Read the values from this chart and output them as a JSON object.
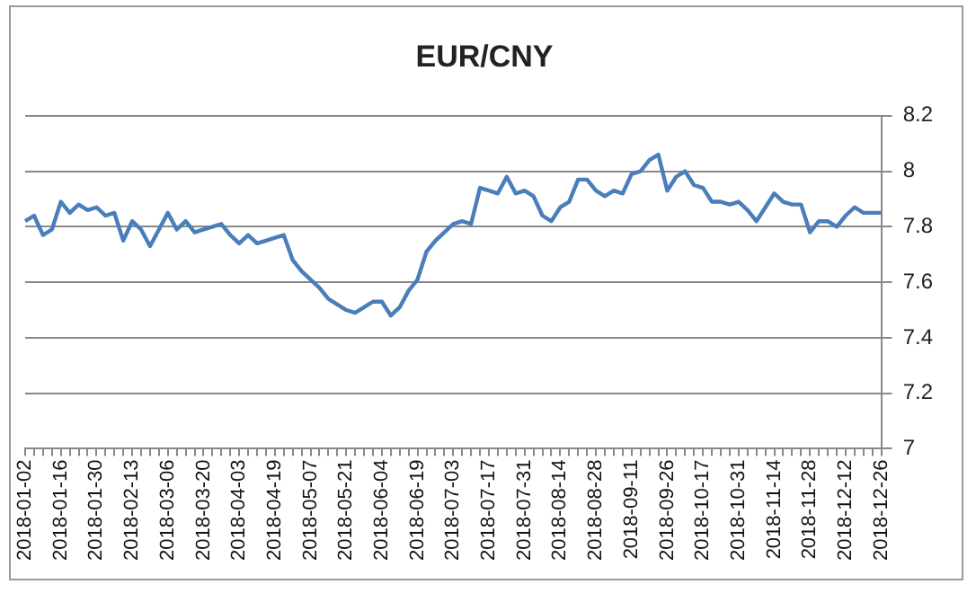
{
  "chart_data": {
    "type": "line",
    "title": "EUR/CNY",
    "categories": [
      "2018-01-02",
      null,
      null,
      null,
      "2018-01-16",
      null,
      null,
      null,
      "2018-01-30",
      null,
      null,
      null,
      "2018-02-13",
      null,
      null,
      null,
      "2018-03-06",
      null,
      null,
      null,
      "2018-03-20",
      null,
      null,
      null,
      "2018-04-03",
      null,
      null,
      null,
      "2018-04-19",
      null,
      null,
      null,
      "2018-05-07",
      null,
      null,
      null,
      "2018-05-21",
      null,
      null,
      null,
      "2018-06-04",
      null,
      null,
      null,
      "2018-06-19",
      null,
      null,
      null,
      "2018-07-03",
      null,
      null,
      null,
      "2018-07-17",
      null,
      null,
      null,
      "2018-07-31",
      null,
      null,
      null,
      "2018-08-14",
      null,
      null,
      null,
      "2018-08-28",
      null,
      null,
      null,
      "2018-09-11",
      null,
      null,
      null,
      "2018-09-26",
      null,
      null,
      null,
      "2018-10-17",
      null,
      null,
      null,
      "2018-10-31",
      null,
      null,
      null,
      "2018-11-14",
      null,
      null,
      null,
      "2018-11-28",
      null,
      null,
      null,
      "2018-12-12",
      null,
      null,
      null,
      "2018-12-26"
    ],
    "series": [
      {
        "color": "#4a7ebb",
        "values": [
          7.82,
          7.84,
          7.77,
          7.79,
          7.89,
          7.85,
          7.88,
          7.86,
          7.87,
          7.84,
          7.85,
          7.75,
          7.82,
          7.79,
          7.73,
          7.79,
          7.85,
          7.79,
          7.82,
          7.78,
          7.79,
          7.8,
          7.81,
          7.77,
          7.74,
          7.77,
          7.74,
          7.75,
          7.76,
          7.77,
          7.68,
          7.64,
          7.61,
          7.58,
          7.54,
          7.52,
          7.5,
          7.49,
          7.51,
          7.53,
          7.53,
          7.48,
          7.51,
          7.57,
          7.61,
          7.71,
          7.75,
          7.78,
          7.81,
          7.82,
          7.81,
          7.94,
          7.93,
          7.92,
          7.98,
          7.92,
          7.93,
          7.91,
          7.84,
          7.82,
          7.87,
          7.89,
          7.97,
          7.97,
          7.93,
          7.91,
          7.93,
          7.92,
          7.99,
          8.0,
          8.04,
          8.06,
          7.93,
          7.98,
          8.0,
          7.95,
          7.94,
          7.89,
          7.89,
          7.88,
          7.89,
          7.86,
          7.82,
          7.87,
          7.92,
          7.89,
          7.88,
          7.88,
          7.78,
          7.82,
          7.82,
          7.8,
          7.84,
          7.87,
          7.85,
          7.85,
          7.85
        ]
      }
    ],
    "ylim": [
      7,
      8.2
    ],
    "yticks": [
      7,
      7.2,
      7.4,
      7.6,
      7.8,
      8,
      8.2
    ],
    "grid": "y",
    "legend": false,
    "marker": "none",
    "line_style": "solid"
  }
}
